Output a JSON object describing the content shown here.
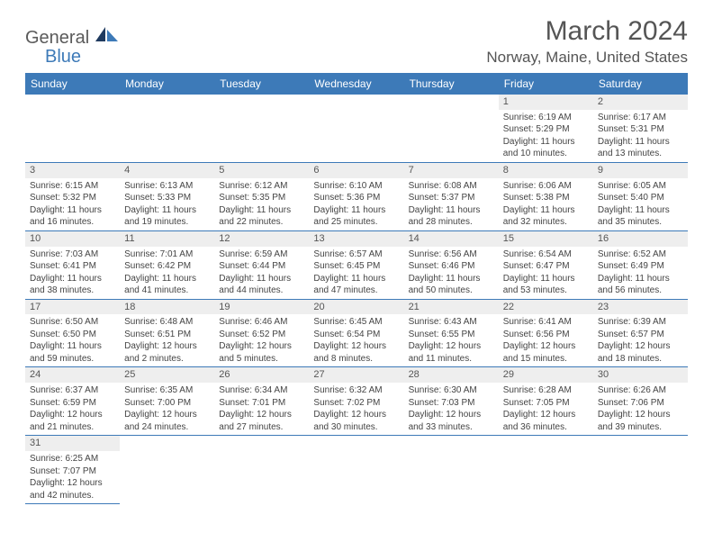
{
  "brand": {
    "name1": "General",
    "name2": "Blue"
  },
  "title": "March 2024",
  "location": "Norway, Maine, United States",
  "colors": {
    "header_bg": "#3d7ab8",
    "header_text": "#ffffff",
    "daynum_bg": "#eeeeee",
    "rule": "#3d7ab8",
    "text": "#444444"
  },
  "weekdays": [
    "Sunday",
    "Monday",
    "Tuesday",
    "Wednesday",
    "Thursday",
    "Friday",
    "Saturday"
  ],
  "weeks": [
    [
      null,
      null,
      null,
      null,
      null,
      {
        "n": "1",
        "sunrise": "6:19 AM",
        "sunset": "5:29 PM",
        "daylight": "11 hours and 10 minutes."
      },
      {
        "n": "2",
        "sunrise": "6:17 AM",
        "sunset": "5:31 PM",
        "daylight": "11 hours and 13 minutes."
      }
    ],
    [
      {
        "n": "3",
        "sunrise": "6:15 AM",
        "sunset": "5:32 PM",
        "daylight": "11 hours and 16 minutes."
      },
      {
        "n": "4",
        "sunrise": "6:13 AM",
        "sunset": "5:33 PM",
        "daylight": "11 hours and 19 minutes."
      },
      {
        "n": "5",
        "sunrise": "6:12 AM",
        "sunset": "5:35 PM",
        "daylight": "11 hours and 22 minutes."
      },
      {
        "n": "6",
        "sunrise": "6:10 AM",
        "sunset": "5:36 PM",
        "daylight": "11 hours and 25 minutes."
      },
      {
        "n": "7",
        "sunrise": "6:08 AM",
        "sunset": "5:37 PM",
        "daylight": "11 hours and 28 minutes."
      },
      {
        "n": "8",
        "sunrise": "6:06 AM",
        "sunset": "5:38 PM",
        "daylight": "11 hours and 32 minutes."
      },
      {
        "n": "9",
        "sunrise": "6:05 AM",
        "sunset": "5:40 PM",
        "daylight": "11 hours and 35 minutes."
      }
    ],
    [
      {
        "n": "10",
        "sunrise": "7:03 AM",
        "sunset": "6:41 PM",
        "daylight": "11 hours and 38 minutes."
      },
      {
        "n": "11",
        "sunrise": "7:01 AM",
        "sunset": "6:42 PM",
        "daylight": "11 hours and 41 minutes."
      },
      {
        "n": "12",
        "sunrise": "6:59 AM",
        "sunset": "6:44 PM",
        "daylight": "11 hours and 44 minutes."
      },
      {
        "n": "13",
        "sunrise": "6:57 AM",
        "sunset": "6:45 PM",
        "daylight": "11 hours and 47 minutes."
      },
      {
        "n": "14",
        "sunrise": "6:56 AM",
        "sunset": "6:46 PM",
        "daylight": "11 hours and 50 minutes."
      },
      {
        "n": "15",
        "sunrise": "6:54 AM",
        "sunset": "6:47 PM",
        "daylight": "11 hours and 53 minutes."
      },
      {
        "n": "16",
        "sunrise": "6:52 AM",
        "sunset": "6:49 PM",
        "daylight": "11 hours and 56 minutes."
      }
    ],
    [
      {
        "n": "17",
        "sunrise": "6:50 AM",
        "sunset": "6:50 PM",
        "daylight": "11 hours and 59 minutes."
      },
      {
        "n": "18",
        "sunrise": "6:48 AM",
        "sunset": "6:51 PM",
        "daylight": "12 hours and 2 minutes."
      },
      {
        "n": "19",
        "sunrise": "6:46 AM",
        "sunset": "6:52 PM",
        "daylight": "12 hours and 5 minutes."
      },
      {
        "n": "20",
        "sunrise": "6:45 AM",
        "sunset": "6:54 PM",
        "daylight": "12 hours and 8 minutes."
      },
      {
        "n": "21",
        "sunrise": "6:43 AM",
        "sunset": "6:55 PM",
        "daylight": "12 hours and 11 minutes."
      },
      {
        "n": "22",
        "sunrise": "6:41 AM",
        "sunset": "6:56 PM",
        "daylight": "12 hours and 15 minutes."
      },
      {
        "n": "23",
        "sunrise": "6:39 AM",
        "sunset": "6:57 PM",
        "daylight": "12 hours and 18 minutes."
      }
    ],
    [
      {
        "n": "24",
        "sunrise": "6:37 AM",
        "sunset": "6:59 PM",
        "daylight": "12 hours and 21 minutes."
      },
      {
        "n": "25",
        "sunrise": "6:35 AM",
        "sunset": "7:00 PM",
        "daylight": "12 hours and 24 minutes."
      },
      {
        "n": "26",
        "sunrise": "6:34 AM",
        "sunset": "7:01 PM",
        "daylight": "12 hours and 27 minutes."
      },
      {
        "n": "27",
        "sunrise": "6:32 AM",
        "sunset": "7:02 PM",
        "daylight": "12 hours and 30 minutes."
      },
      {
        "n": "28",
        "sunrise": "6:30 AM",
        "sunset": "7:03 PM",
        "daylight": "12 hours and 33 minutes."
      },
      {
        "n": "29",
        "sunrise": "6:28 AM",
        "sunset": "7:05 PM",
        "daylight": "12 hours and 36 minutes."
      },
      {
        "n": "30",
        "sunrise": "6:26 AM",
        "sunset": "7:06 PM",
        "daylight": "12 hours and 39 minutes."
      }
    ],
    [
      {
        "n": "31",
        "sunrise": "6:25 AM",
        "sunset": "7:07 PM",
        "daylight": "12 hours and 42 minutes."
      },
      null,
      null,
      null,
      null,
      null,
      null
    ]
  ],
  "labels": {
    "sunrise": "Sunrise: ",
    "sunset": "Sunset: ",
    "daylight": "Daylight: "
  }
}
